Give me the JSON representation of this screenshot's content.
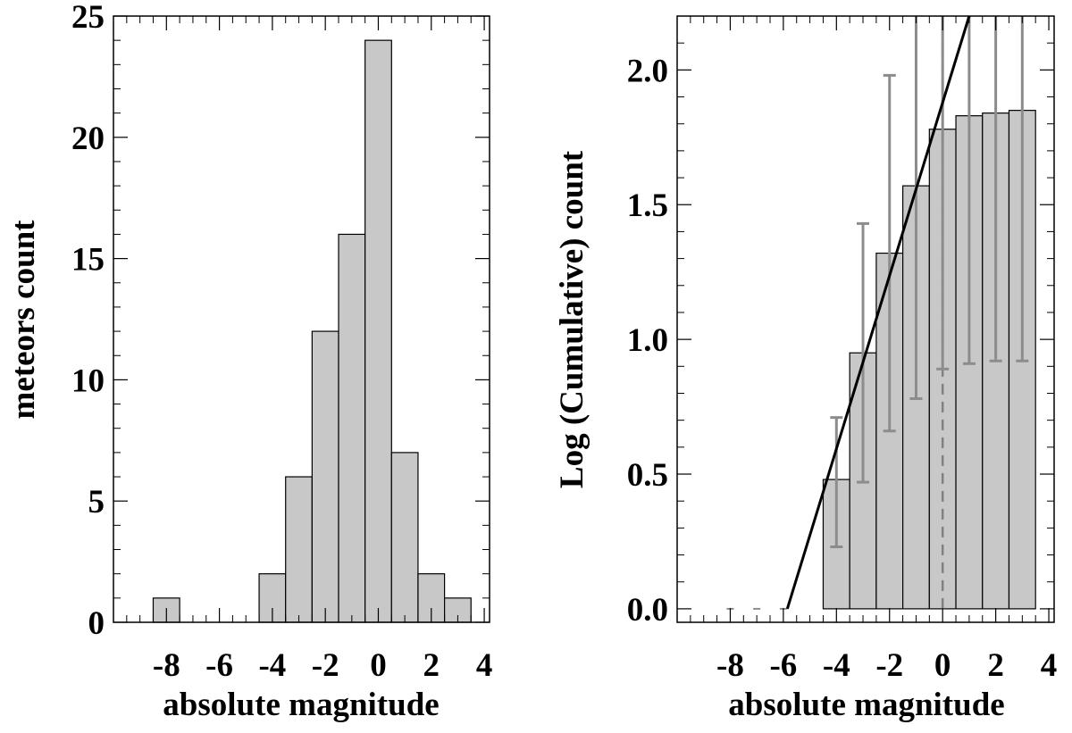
{
  "chart_data": [
    {
      "type": "bar",
      "title": "",
      "xlabel": "absolute magnitude",
      "ylabel": "meteors count",
      "xlim": [
        -10,
        4.2
      ],
      "ylim": [
        0,
        25
      ],
      "xticks": [
        -8,
        -6,
        -4,
        -2,
        0,
        2,
        4
      ],
      "xtick_labels": [
        "-8",
        "-6",
        "-4",
        "-2",
        "0",
        "2",
        "4"
      ],
      "yticks": [
        0,
        5,
        10,
        15,
        20,
        25
      ],
      "ytick_labels": [
        "0",
        "5",
        "10",
        "15",
        "20",
        "25"
      ],
      "bin_width": 1,
      "bins": [
        {
          "center": -8,
          "count": 1
        },
        {
          "center": -4,
          "count": 2
        },
        {
          "center": -3,
          "count": 6
        },
        {
          "center": -2,
          "count": 12
        },
        {
          "center": -1,
          "count": 16
        },
        {
          "center": 0,
          "count": 24
        },
        {
          "center": 1,
          "count": 7
        },
        {
          "center": 2,
          "count": 2
        },
        {
          "center": 3,
          "count": 1
        }
      ],
      "bar_color": "#c8c8c8",
      "edge_color": "#000000"
    },
    {
      "type": "bar",
      "title": "",
      "xlabel": "absolute magnitude",
      "ylabel": "Log (Cumulative) count",
      "xlim": [
        -10,
        4.2
      ],
      "ylim": [
        -0.05,
        2.2
      ],
      "xticks": [
        -8,
        -6,
        -4,
        -2,
        0,
        2,
        4
      ],
      "xtick_labels": [
        "-8",
        "-6",
        "-4",
        "-2",
        "0",
        "2",
        "4"
      ],
      "yticks": [
        0,
        0.5,
        1,
        1.5,
        2
      ],
      "ytick_labels": [
        "0.0",
        "0.5",
        "1.0",
        "1.5",
        "2.0"
      ],
      "bin_width": 1,
      "bins": [
        {
          "center": -4,
          "value": 0.48,
          "err_low": 0.23,
          "err_high": 0.71
        },
        {
          "center": -3,
          "value": 0.95,
          "err_low": 0.47,
          "err_high": 1.43
        },
        {
          "center": -2,
          "value": 1.32,
          "err_low": 0.66,
          "err_high": 1.98
        },
        {
          "center": -1,
          "value": 1.57,
          "err_low": 0.78,
          "err_high": 2.2
        },
        {
          "center": 0,
          "value": 1.78,
          "err_low": 0.89,
          "err_high": 2.2
        },
        {
          "center": 1,
          "value": 1.83,
          "err_low": 0.91,
          "err_high": 2.2
        },
        {
          "center": 2,
          "value": 1.84,
          "err_low": 0.92,
          "err_high": 2.2
        },
        {
          "center": 3,
          "value": 1.85,
          "err_low": 0.92,
          "err_high": 2.2
        }
      ],
      "zero_markers": [
        -8,
        -7,
        -6
      ],
      "fit_line": {
        "x": [
          -5.85,
          1.0
        ],
        "y": [
          0.0,
          2.2
        ],
        "color": "#000000"
      },
      "vertical_line": {
        "x": 0,
        "y_from": 0.0,
        "y_to": 2.2,
        "style": "dashed",
        "color": "#808080"
      },
      "bar_color": "#c8c8c8",
      "edge_color": "#000000",
      "errorbar_color": "#8c8c8c"
    }
  ]
}
